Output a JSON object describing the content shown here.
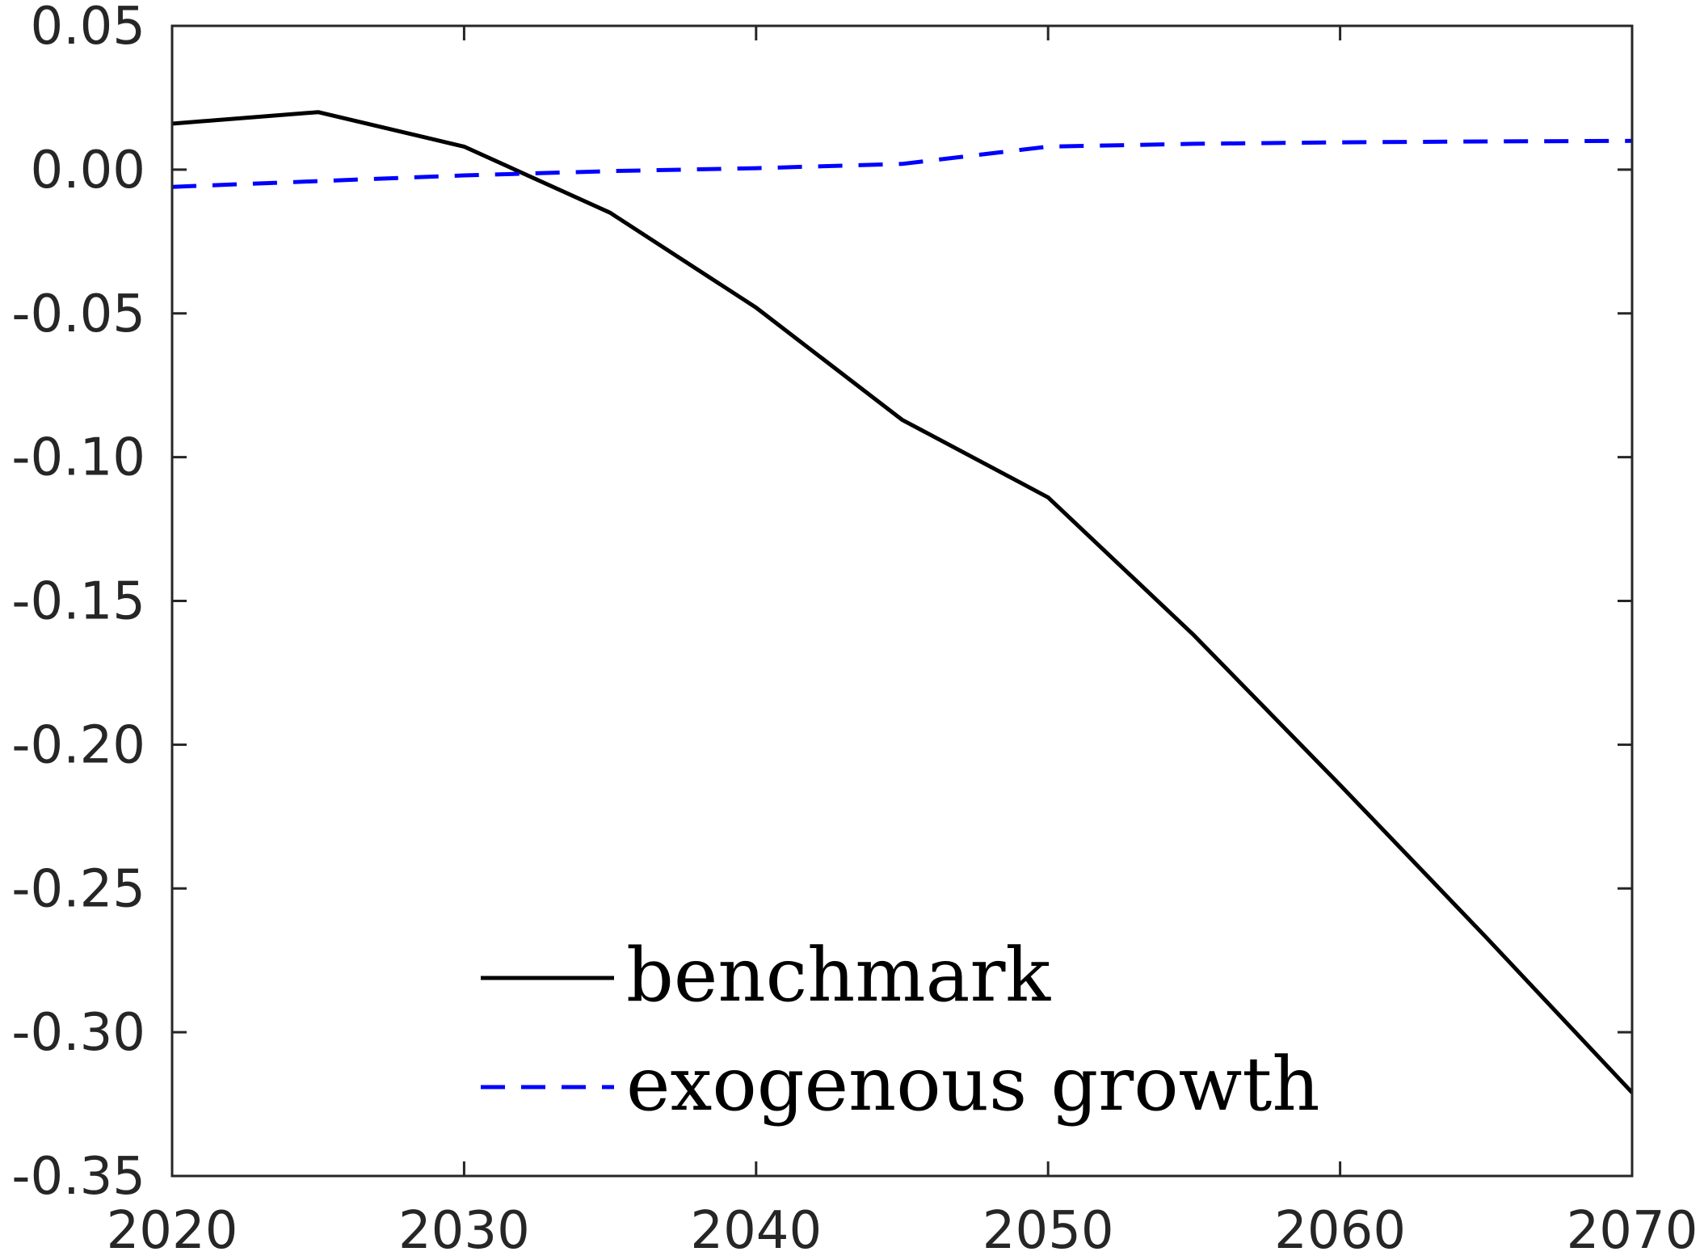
{
  "chart_data": {
    "type": "line",
    "title": "",
    "xlabel": "",
    "ylabel": "",
    "xlim": [
      2020,
      2070
    ],
    "ylim": [
      -0.35,
      0.05
    ],
    "x_ticks": [
      2020,
      2030,
      2040,
      2050,
      2060,
      2070
    ],
    "x_tick_labels": [
      "2020",
      "2030",
      "2040",
      "2050",
      "2060",
      "2070"
    ],
    "y_ticks": [
      0.05,
      0.0,
      -0.05,
      -0.1,
      -0.15,
      -0.2,
      -0.25,
      -0.3,
      -0.35
    ],
    "y_tick_labels": [
      "0.05",
      "0.00",
      "-0.05",
      "-0.10",
      "-0.15",
      "-0.20",
      "-0.25",
      "-0.30",
      "-0.35"
    ],
    "grid": false,
    "legend_position": "bottom-center",
    "series": [
      {
        "name": "benchmark",
        "color": "#000000",
        "line_style": "solid",
        "x": [
          2020,
          2025,
          2030,
          2035,
          2040,
          2045,
          2050,
          2055,
          2060,
          2065,
          2070
        ],
        "y": [
          0.016,
          0.02,
          0.008,
          -0.015,
          -0.048,
          -0.087,
          -0.114,
          -0.162,
          -0.214,
          -0.267,
          -0.321
        ]
      },
      {
        "name": "exogenous growth",
        "color": "#0000ff",
        "line_style": "dashed",
        "x": [
          2020,
          2025,
          2030,
          2035,
          2040,
          2045,
          2050,
          2055,
          2060,
          2065,
          2070
        ],
        "y": [
          -0.006,
          -0.004,
          -0.002,
          -0.0005,
          0.0005,
          0.002,
          0.008,
          0.009,
          0.0095,
          0.0098,
          0.01
        ]
      }
    ]
  }
}
